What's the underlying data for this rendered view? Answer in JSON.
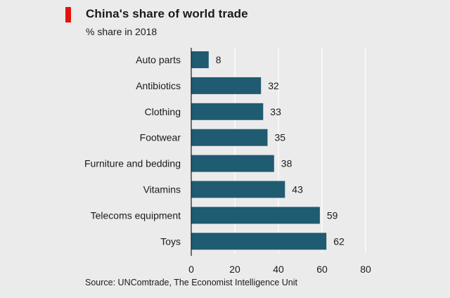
{
  "header": {
    "title": "China's share of world trade",
    "subtitle": "% share in 2018"
  },
  "footer": {
    "source": "Source: UNComtrade, The Economist Intelligence Unit"
  },
  "colors": {
    "bar": "#1f5b71",
    "accent": "#e3120b",
    "grid": "#ffffff",
    "background": "#ebebeb"
  },
  "chart_data": {
    "type": "bar",
    "orientation": "horizontal",
    "title": "China's share of world trade",
    "subtitle": "% share in 2018",
    "categories": [
      "Auto parts",
      "Antibiotics",
      "Clothing",
      "Footwear",
      "Furniture and bedding",
      "Vitamins",
      "Telecoms equipment",
      "Toys"
    ],
    "values": [
      8,
      32,
      33,
      35,
      38,
      43,
      59,
      62
    ],
    "data_labels": [
      "8",
      "32",
      "33",
      "35",
      "38",
      "43",
      "59",
      "62"
    ],
    "xlim": [
      0,
      80
    ],
    "xticks": [
      0,
      20,
      40,
      60,
      80
    ],
    "xtick_labels": [
      "0",
      "20",
      "40",
      "60",
      "80"
    ],
    "grid": true,
    "legend": "none"
  }
}
